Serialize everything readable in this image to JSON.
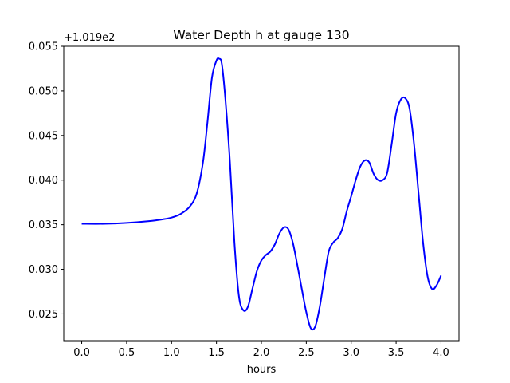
{
  "chart_data": {
    "type": "line",
    "title": "Water Depth h at gauge 130",
    "xlabel": "hours",
    "ylabel": "",
    "offset_label": "+1.019e2",
    "xlim": [
      -0.2,
      4.2
    ],
    "ylim": [
      0.022,
      0.055
    ],
    "xticks": [
      0.0,
      0.5,
      1.0,
      1.5,
      2.0,
      2.5,
      3.0,
      3.5,
      4.0
    ],
    "xtick_labels": [
      "0.0",
      "0.5",
      "1.0",
      "1.5",
      "2.0",
      "2.5",
      "3.0",
      "3.5",
      "4.0"
    ],
    "yticks": [
      0.025,
      0.03,
      0.035,
      0.04,
      0.045,
      0.05,
      0.055
    ],
    "ytick_labels": [
      "0.025",
      "0.030",
      "0.035",
      "0.040",
      "0.045",
      "0.050",
      "0.055"
    ],
    "grid": false,
    "series": [
      {
        "color": "#0000ff",
        "x": [
          0.0,
          0.25,
          0.5,
          0.75,
          0.9,
          1.0,
          1.1,
          1.2,
          1.28,
          1.35,
          1.4,
          1.45,
          1.5,
          1.53,
          1.56,
          1.6,
          1.65,
          1.7,
          1.75,
          1.8,
          1.85,
          1.9,
          1.95,
          2.0,
          2.05,
          2.1,
          2.15,
          2.2,
          2.25,
          2.3,
          2.35,
          2.4,
          2.45,
          2.5,
          2.55,
          2.6,
          2.65,
          2.7,
          2.75,
          2.8,
          2.85,
          2.9,
          2.95,
          3.0,
          3.05,
          3.1,
          3.15,
          3.2,
          3.25,
          3.3,
          3.35,
          3.4,
          3.45,
          3.5,
          3.55,
          3.6,
          3.65,
          3.7,
          3.75,
          3.8,
          3.85,
          3.9,
          3.95,
          4.0
        ],
        "y": [
          0.0351,
          0.0351,
          0.0352,
          0.0354,
          0.0356,
          0.0358,
          0.0362,
          0.037,
          0.0385,
          0.042,
          0.0465,
          0.0515,
          0.0534,
          0.0536,
          0.053,
          0.049,
          0.042,
          0.033,
          0.027,
          0.0254,
          0.0258,
          0.0278,
          0.0298,
          0.031,
          0.0316,
          0.032,
          0.0328,
          0.034,
          0.0347,
          0.0345,
          0.033,
          0.0305,
          0.0278,
          0.0252,
          0.0234,
          0.0236,
          0.0258,
          0.029,
          0.032,
          0.033,
          0.0335,
          0.0345,
          0.0365,
          0.0382,
          0.04,
          0.0415,
          0.0422,
          0.042,
          0.0407,
          0.04,
          0.04,
          0.0408,
          0.044,
          0.0475,
          0.049,
          0.0492,
          0.048,
          0.044,
          0.0385,
          0.033,
          0.0292,
          0.0278,
          0.0282,
          0.0293
        ]
      }
    ]
  }
}
